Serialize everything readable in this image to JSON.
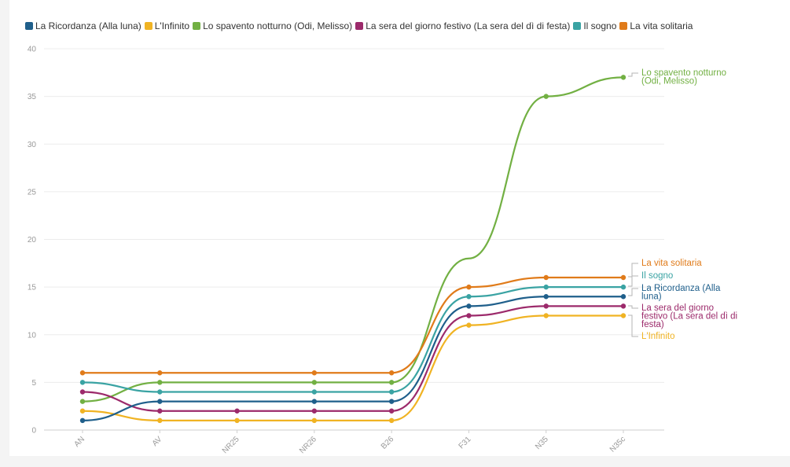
{
  "chart_data": {
    "type": "line",
    "title": "",
    "xlabel": "",
    "ylabel": "",
    "x": [
      "AN",
      "AV",
      "NR25",
      "NR26",
      "B26",
      "F31",
      "N35",
      "N35c"
    ],
    "ylim": [
      0,
      40
    ],
    "yticks": [
      0,
      5,
      10,
      15,
      20,
      25,
      30,
      35,
      40
    ],
    "grid": true,
    "legend": "top",
    "series": [
      {
        "name": "La Ricordanza (Alla luna)",
        "color": "#1f5f8b",
        "values": [
          1,
          3,
          3,
          3,
          3,
          13,
          14,
          14
        ],
        "points": [
          0,
          1,
          3,
          4,
          5,
          6,
          7
        ],
        "end_label": [
          "La Ricordanza (Alla",
          "luna)"
        ]
      },
      {
        "name": "L'Infinito",
        "color": "#f0b323",
        "values": [
          2,
          1,
          1,
          1,
          1,
          11,
          12,
          12
        ],
        "points": [
          0,
          1,
          2,
          3,
          4,
          5,
          6,
          7
        ],
        "end_label": [
          "L'Infinito"
        ]
      },
      {
        "name": "Lo spavento notturno (Odi, Melisso)",
        "color": "#72b043",
        "values": [
          3,
          5,
          5,
          5,
          5,
          18,
          35,
          37
        ],
        "points": [
          0,
          1,
          3,
          4,
          6,
          7
        ],
        "end_label": [
          "Lo spavento notturno",
          "(Odi, Melisso)"
        ]
      },
      {
        "name": "La sera del giorno festivo (La sera del dì di festa)",
        "color": "#9c2a6b",
        "values": [
          4,
          2,
          2,
          2,
          2,
          12,
          13,
          13
        ],
        "points": [
          0,
          1,
          2,
          3,
          4,
          5,
          6,
          7
        ],
        "end_label": [
          "La sera del giorno",
          "festivo (La sera del dì di",
          "festa)"
        ]
      },
      {
        "name": "Il sogno",
        "color": "#3aa3a3",
        "values": [
          5,
          4,
          4,
          4,
          4,
          14,
          15,
          15
        ],
        "points": [
          0,
          1,
          3,
          4,
          5,
          6,
          7
        ],
        "end_label": [
          "Il sogno"
        ]
      },
      {
        "name": "La vita solitaria",
        "color": "#e07b1a",
        "values": [
          6,
          6,
          6,
          6,
          6,
          15,
          16,
          16
        ],
        "points": [
          0,
          1,
          3,
          4,
          5,
          6,
          7
        ],
        "end_label": [
          "La vita solitaria"
        ]
      }
    ]
  }
}
